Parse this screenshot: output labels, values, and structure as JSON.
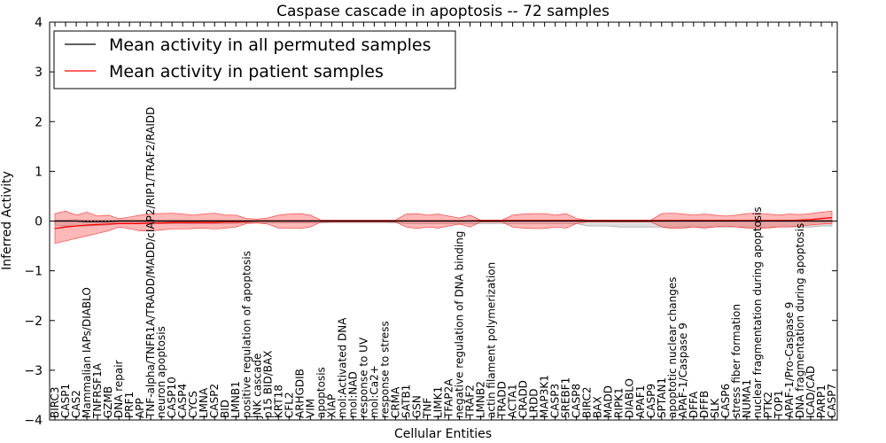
{
  "chart_data": {
    "type": "line",
    "title": "Caspase cascade in apoptosis -- 72 samples",
    "xlabel": "Cellular Entities",
    "ylabel": "Inferred Activity",
    "ylim": [
      -4,
      4
    ],
    "yticks": [
      -4,
      -3,
      -2,
      -1,
      0,
      1,
      2,
      3,
      4
    ],
    "grid": false,
    "legend_position": "top-left",
    "categories": [
      "BIRC3",
      "CASP1",
      "CAS2",
      "Mammalian IAPs/DIABLO",
      "TNFRSF1A",
      "GZMB",
      "DNA repair",
      "PRF1",
      "APP",
      "TNF-alpha/TNFR1A/TRADD/MADD/cIAP2/RIP1/TRAF2/RAIDD",
      "neuron apoptosis",
      "CASP10",
      "CASP4",
      "CYCS",
      "LMNA",
      "CASP2",
      "BID",
      "LMNB1",
      "positive regulation of apoptosis",
      "JNK cascade",
      "p15 BID/BAX",
      "KRT18",
      "CFL2",
      "ARHGDIB",
      "VIM",
      "apoptosis",
      "XIAP",
      "mol:Activated DNA",
      "mol:NAD",
      "response to UV",
      "mol:Ca2+",
      "response to stress",
      "CRMA",
      "SATB1",
      "GSN",
      "TNF",
      "LIMK1",
      "TFAP2A",
      "negative regulation of DNA binding",
      "TRAF2",
      "LMNB2",
      "actin filament polymerization",
      "TRADD",
      "ACTA1",
      "CRADD",
      "LRDD",
      "MAP3K1",
      "CASP3",
      "SREBF1",
      "CASP8",
      "BIRC2",
      "BAX",
      "MADD",
      "RIPK1",
      "DIABLO",
      "APAF1",
      "CASP9",
      "SPTAN1",
      "apoptotic nuclear changes",
      "APAF-1/Caspase 9",
      "DFFA",
      "DFFB",
      "SLK",
      "CASP6",
      "stress fiber formation",
      "NUMA1",
      "nuclear fragmentation during apoptosis",
      "PTK2",
      "TOP1",
      "APAF-1/Pro-Caspase 9",
      "DNA fragmentation during apoptosis",
      "ICAD/CAD",
      "PARP1",
      "CASP7"
    ],
    "series": [
      {
        "name": "Mean activity in all permuted samples",
        "color": "#000000",
        "values": [
          0.0,
          0.0,
          0.0,
          -0.01,
          -0.01,
          -0.01,
          0.0,
          0.0,
          0.0,
          0.0,
          0.0,
          0.0,
          0.0,
          0.0,
          0.0,
          0.0,
          0.0,
          0.0,
          0.0,
          0.0,
          0.0,
          0.0,
          0.0,
          0.0,
          0.0,
          0.0,
          0.0,
          0.0,
          0.0,
          0.0,
          0.0,
          0.0,
          0.0,
          0.0,
          0.0,
          0.0,
          0.0,
          0.0,
          0.0,
          0.0,
          0.0,
          0.0,
          0.0,
          0.0,
          0.0,
          0.0,
          0.0,
          0.0,
          0.0,
          0.0,
          0.0,
          0.0,
          0.0,
          0.0,
          0.0,
          0.0,
          0.0,
          0.0,
          0.0,
          0.0,
          0.0,
          0.0,
          0.0,
          0.0,
          0.0,
          0.0,
          0.0,
          0.0,
          0.0,
          0.0,
          0.0,
          0.0,
          0.0,
          0.0
        ],
        "band": [
          0.02,
          0.02,
          0.03,
          0.03,
          0.03,
          0.03,
          0.02,
          0.02,
          0.02,
          0.02,
          0.02,
          0.02,
          0.02,
          0.02,
          0.02,
          0.02,
          0.02,
          0.02,
          0.02,
          0.02,
          0.02,
          0.02,
          0.02,
          0.02,
          0.02,
          0.02,
          0.02,
          0.02,
          0.02,
          0.02,
          0.02,
          0.02,
          0.02,
          0.02,
          0.02,
          0.02,
          0.02,
          0.02,
          0.02,
          0.02,
          0.02,
          0.02,
          0.02,
          0.02,
          0.02,
          0.02,
          0.02,
          0.02,
          0.02,
          0.02,
          0.02,
          0.02,
          0.02,
          0.02,
          0.02,
          0.02,
          0.02,
          0.02,
          0.02,
          0.02,
          0.02,
          0.02,
          0.02,
          0.02,
          0.02,
          0.02,
          0.02,
          0.02,
          0.02,
          0.02,
          0.02,
          0.02,
          0.02,
          0.02
        ],
        "band_lower": [
          -0.08,
          -0.1,
          -0.1,
          -0.1,
          -0.09,
          -0.08,
          -0.05,
          -0.05,
          -0.05,
          -0.05,
          -0.05,
          -0.05,
          -0.05,
          -0.05,
          -0.05,
          -0.05,
          -0.05,
          -0.05,
          -0.04,
          -0.04,
          -0.04,
          -0.04,
          -0.04,
          -0.04,
          -0.04,
          -0.04,
          -0.03,
          -0.03,
          -0.03,
          -0.03,
          -0.03,
          -0.03,
          -0.04,
          -0.05,
          -0.05,
          -0.05,
          -0.05,
          -0.05,
          -0.05,
          -0.05,
          -0.05,
          -0.05,
          -0.05,
          -0.05,
          -0.05,
          -0.05,
          -0.05,
          -0.05,
          -0.05,
          -0.05,
          -0.1,
          -0.1,
          -0.1,
          -0.12,
          -0.12,
          -0.12,
          -0.12,
          -0.12,
          -0.12,
          -0.12,
          -0.12,
          -0.12,
          -0.12,
          -0.12,
          -0.12,
          -0.12,
          -0.12,
          -0.12,
          -0.12,
          -0.12,
          -0.12,
          -0.12,
          -0.1,
          -0.1
        ]
      },
      {
        "name": "Mean activity in patient samples",
        "color": "#ff0000",
        "values": [
          -0.15,
          -0.12,
          -0.1,
          -0.08,
          -0.07,
          -0.06,
          -0.05,
          -0.05,
          -0.05,
          -0.04,
          -0.04,
          -0.03,
          -0.03,
          -0.03,
          -0.03,
          -0.03,
          -0.02,
          -0.02,
          -0.01,
          0.0,
          0.0,
          0.0,
          0.0,
          0.0,
          0.0,
          0.0,
          0.0,
          0.0,
          0.0,
          0.0,
          0.0,
          0.0,
          0.0,
          0.0,
          0.0,
          0.0,
          0.0,
          0.0,
          0.0,
          0.0,
          0.01,
          0.01,
          0.01,
          0.01,
          0.01,
          0.01,
          0.01,
          0.01,
          0.01,
          0.01,
          0.01,
          0.01,
          0.01,
          0.01,
          0.01,
          0.01,
          0.01,
          0.01,
          0.01,
          0.01,
          0.01,
          0.01,
          0.01,
          0.01,
          0.01,
          0.01,
          0.01,
          0.01,
          0.01,
          0.01,
          0.02,
          0.03,
          0.05,
          0.07
        ],
        "band_upper": [
          0.15,
          0.2,
          0.12,
          0.18,
          0.1,
          0.12,
          0.05,
          0.08,
          0.12,
          0.15,
          0.15,
          0.16,
          0.14,
          0.12,
          0.14,
          0.16,
          0.12,
          0.12,
          0.05,
          0.04,
          0.06,
          0.12,
          0.14,
          0.15,
          0.12,
          0.02,
          0.02,
          0.02,
          0.02,
          0.02,
          0.02,
          0.02,
          0.02,
          0.14,
          0.15,
          0.12,
          0.14,
          0.1,
          0.06,
          0.12,
          0.02,
          0.02,
          0.02,
          0.12,
          0.14,
          0.15,
          0.15,
          0.12,
          0.15,
          0.05,
          0.02,
          0.02,
          0.02,
          0.02,
          0.02,
          0.02,
          0.02,
          0.15,
          0.16,
          0.14,
          0.12,
          0.14,
          0.12,
          0.1,
          0.12,
          0.15,
          0.16,
          0.14,
          0.12,
          0.14,
          0.13,
          0.15,
          0.18,
          0.2
        ],
        "band_lower": [
          -0.45,
          -0.4,
          -0.35,
          -0.3,
          -0.25,
          -0.2,
          -0.12,
          -0.15,
          -0.2,
          -0.2,
          -0.18,
          -0.16,
          -0.16,
          -0.15,
          -0.14,
          -0.16,
          -0.14,
          -0.12,
          -0.05,
          -0.04,
          -0.06,
          -0.14,
          -0.14,
          -0.15,
          -0.12,
          -0.02,
          -0.02,
          -0.02,
          -0.02,
          -0.02,
          -0.02,
          -0.02,
          -0.02,
          -0.12,
          -0.15,
          -0.12,
          -0.14,
          -0.1,
          -0.06,
          -0.12,
          -0.02,
          -0.02,
          -0.02,
          -0.12,
          -0.14,
          -0.15,
          -0.15,
          -0.12,
          -0.14,
          -0.05,
          -0.02,
          -0.02,
          -0.02,
          -0.02,
          -0.02,
          -0.02,
          -0.02,
          -0.12,
          -0.15,
          -0.14,
          -0.12,
          -0.14,
          -0.12,
          -0.1,
          -0.12,
          -0.14,
          -0.15,
          -0.14,
          -0.12,
          -0.12,
          -0.1,
          -0.08,
          -0.06,
          -0.05
        ]
      }
    ]
  }
}
